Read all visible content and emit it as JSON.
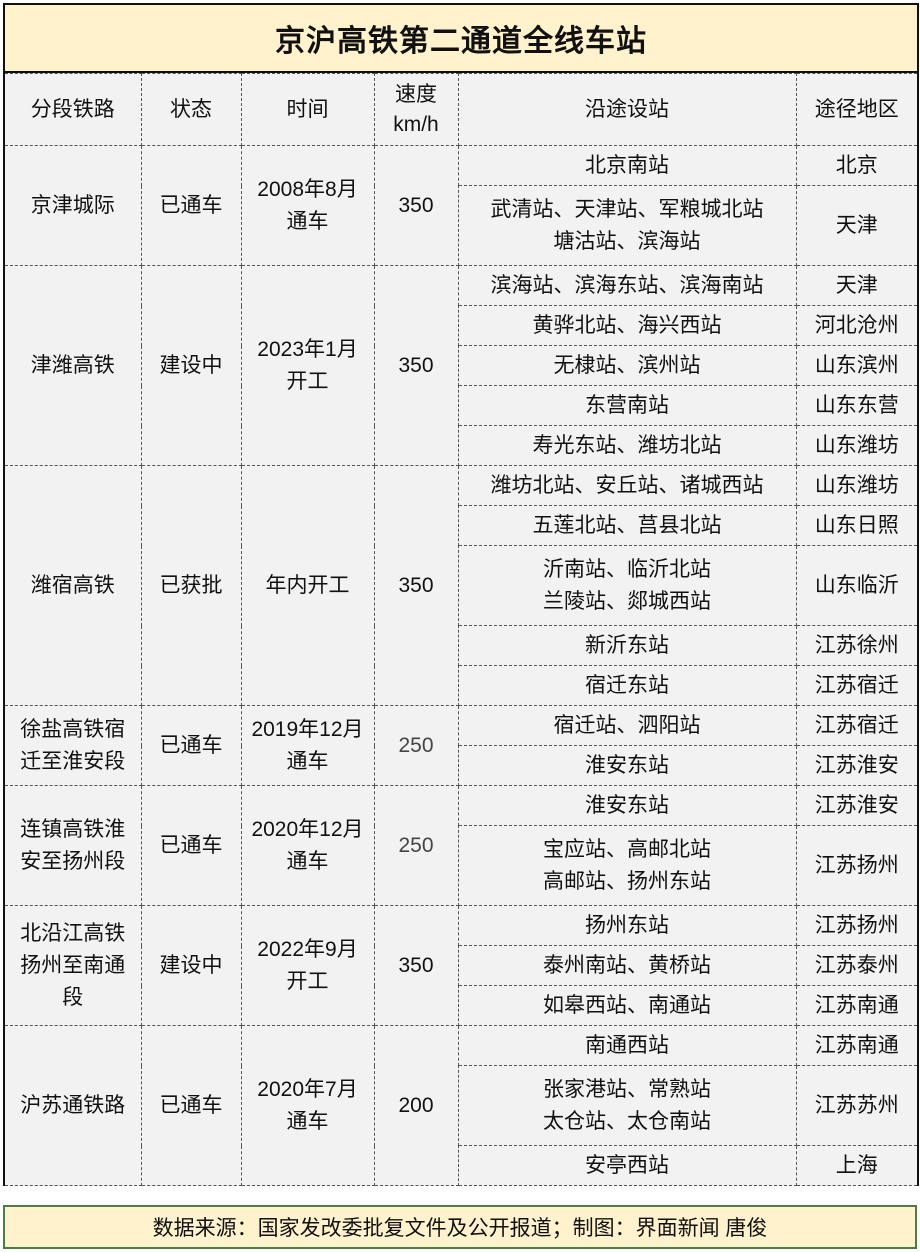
{
  "title": "京沪高铁第二通道全线车站",
  "headers": [
    "分段铁路",
    "状态",
    "时间",
    "速度\nkm/h",
    "沿途设站",
    "途径地区"
  ],
  "sections": [
    {
      "line": "京津城际",
      "status": "已通车",
      "time": "2008年8月\n通车",
      "speed": "350",
      "rows": [
        {
          "stations": "北京南站",
          "region": "北京"
        },
        {
          "stations": "武清站、天津站、军粮城北站\n塘沽站、滨海站",
          "region": "天津"
        }
      ]
    },
    {
      "line": "津潍高铁",
      "status": "建设中",
      "time": "2023年1月\n开工",
      "speed": "350",
      "rows": [
        {
          "stations": "滨海站、滨海东站、滨海南站",
          "region": "天津"
        },
        {
          "stations": "黄骅北站、海兴西站",
          "region": "河北沧州"
        },
        {
          "stations": "无棣站、滨州站",
          "region": "山东滨州"
        },
        {
          "stations": "东营南站",
          "region": "山东东营"
        },
        {
          "stations": "寿光东站、潍坊北站",
          "region": "山东潍坊"
        }
      ]
    },
    {
      "line": "潍宿高铁",
      "status": "已获批",
      "time": "年内开工",
      "speed": "350",
      "rows": [
        {
          "stations": "潍坊北站、安丘站、诸城西站",
          "region": "山东潍坊"
        },
        {
          "stations": "五莲北站、莒县北站",
          "region": "山东日照"
        },
        {
          "stations": "沂南站、临沂北站\n兰陵站、郯城西站",
          "region": "山东临沂"
        },
        {
          "stations": "新沂东站",
          "region": "江苏徐州"
        },
        {
          "stations": "宿迁东站",
          "region": "江苏宿迁"
        }
      ]
    },
    {
      "line": "徐盐高铁宿\n迁至淮安段",
      "status": "已通车",
      "time": "2019年12月\n通车",
      "speed": "250",
      "rows": [
        {
          "stations": "宿迁站、泗阳站",
          "region": "江苏宿迁"
        },
        {
          "stations": "淮安东站",
          "region": "江苏淮安"
        }
      ]
    },
    {
      "line": "连镇高铁淮\n安至扬州段",
      "status": "已通车",
      "time": "2020年12月\n通车",
      "speed": "250",
      "rows": [
        {
          "stations": "淮安东站",
          "region": "江苏淮安"
        },
        {
          "stations": "宝应站、高邮北站\n高邮站、扬州东站",
          "region": "江苏扬州"
        }
      ]
    },
    {
      "line": "北沿江高铁\n扬州至南通\n段",
      "status": "建设中",
      "time": "2022年9月\n开工",
      "speed": "350",
      "rows": [
        {
          "stations": "扬州东站",
          "region": "江苏扬州"
        },
        {
          "stations": "泰州南站、黄桥站",
          "region": "江苏泰州"
        },
        {
          "stations": "如皋西站、南通站",
          "region": "江苏南通"
        }
      ]
    },
    {
      "line": "沪苏通铁路",
      "status": "已通车",
      "time": "2020年7月\n通车",
      "speed": "200",
      "rows": [
        {
          "stations": "南通西站",
          "region": "江苏南通"
        },
        {
          "stations": "张家港站、常熟站\n太仓站、太仓南站",
          "region": "江苏苏州"
        },
        {
          "stations": "安亭西站",
          "region": "上海"
        }
      ]
    }
  ],
  "footer": "数据来源：国家发改委批复文件及公开报道；制图：界面新闻 唐俊",
  "colors": {
    "title_bg": "#fff2cc",
    "body_bg": "#f2f2f2",
    "footer_border": "#4e7a45"
  }
}
